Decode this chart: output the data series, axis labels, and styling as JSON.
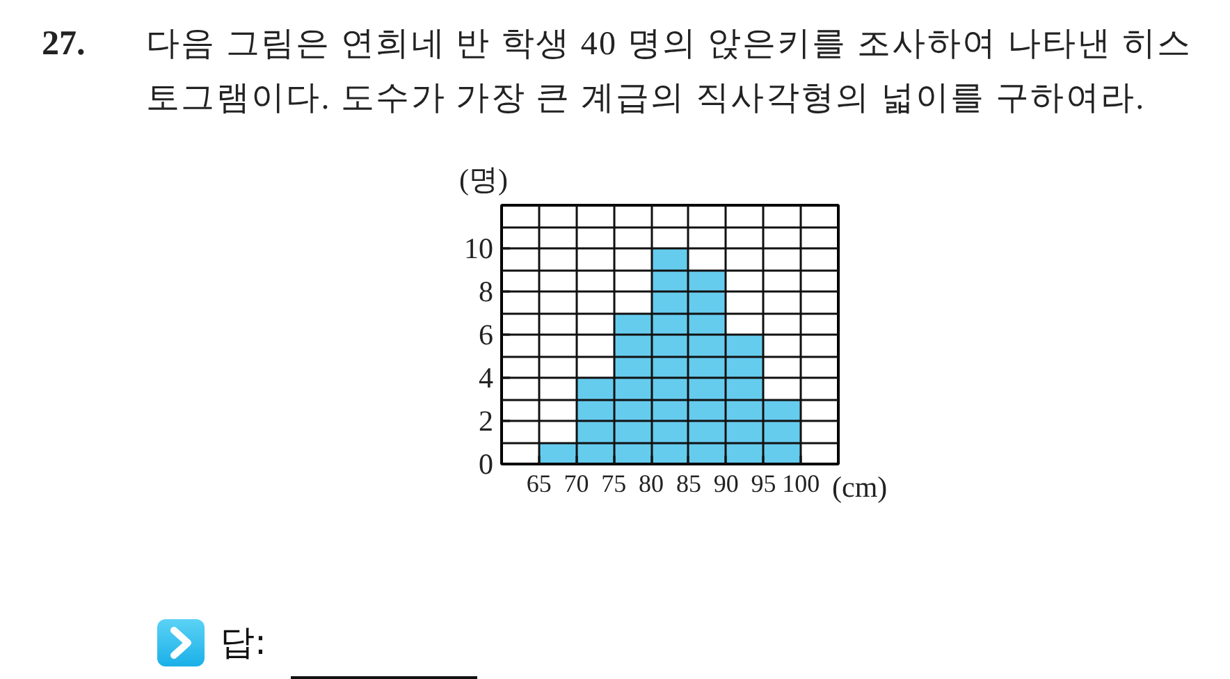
{
  "chart_data": {
    "type": "histogram",
    "title": "27. 다음 그림은 연희네 반 학생 40 명의 앉은키를 조사하여 나타낸 히스토그램이다. 도수가 가장 큰 계급의 직사각형의 넓이를 구하여라.",
    "xlabel": "(cm)",
    "ylabel": "(명)",
    "bins": [
      65,
      70,
      75,
      80,
      85,
      90,
      95,
      100
    ],
    "values": [
      1,
      4,
      7,
      10,
      9,
      6,
      3
    ],
    "color": "#66ccee",
    "xlim": [
      60,
      105
    ],
    "ylim": [
      0,
      12
    ],
    "xticks": [
      65,
      70,
      75,
      80,
      85,
      90,
      95,
      100
    ],
    "yticks": [
      0,
      2,
      4,
      6,
      8,
      10
    ],
    "grid": true,
    "annotations": [
      "답:"
    ]
  }
}
